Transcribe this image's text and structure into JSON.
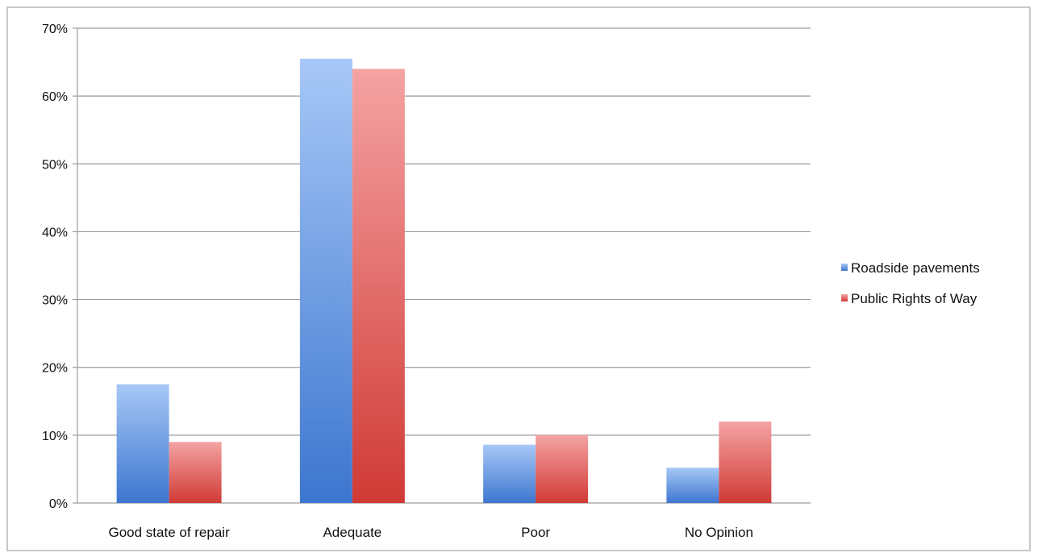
{
  "chart_data": {
    "type": "bar",
    "title": "",
    "xlabel": "",
    "ylabel": "",
    "categories": [
      "Good state of repair",
      "Adequate",
      "Poor",
      "No Opinion"
    ],
    "series": [
      {
        "name": "Roadside pavements",
        "values": [
          17.5,
          65.5,
          8.6,
          5.2
        ],
        "color": "#5b8ed9",
        "color_light": "#a7c8f7",
        "color_dark": "#3d76cf"
      },
      {
        "name": "Public Rights of Way",
        "values": [
          9,
          64,
          10,
          12
        ],
        "color": "#e06666",
        "color_light": "#f4a3a3",
        "color_dark": "#d03a35"
      }
    ],
    "y_ticks": [
      "0%",
      "10%",
      "20%",
      "30%",
      "40%",
      "50%",
      "60%",
      "70%"
    ],
    "ylim": [
      0,
      70
    ],
    "y_unit": "%",
    "grid": true,
    "legend_position": "right"
  }
}
